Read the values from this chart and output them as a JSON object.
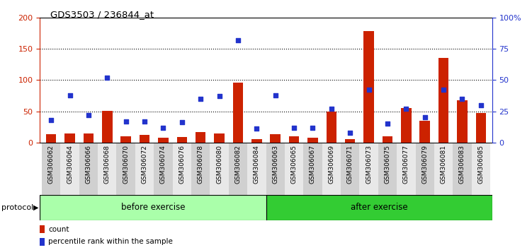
{
  "title": "GDS3503 / 236844_at",
  "samples": [
    "GSM306062",
    "GSM306064",
    "GSM306066",
    "GSM306068",
    "GSM306070",
    "GSM306072",
    "GSM306074",
    "GSM306076",
    "GSM306078",
    "GSM306080",
    "GSM306082",
    "GSM306084",
    "GSM306063",
    "GSM306065",
    "GSM306067",
    "GSM306069",
    "GSM306071",
    "GSM306073",
    "GSM306075",
    "GSM306077",
    "GSM306079",
    "GSM306081",
    "GSM306083",
    "GSM306085"
  ],
  "count": [
    13,
    15,
    15,
    51,
    10,
    12,
    8,
    9,
    17,
    15,
    96,
    5,
    13,
    10,
    8,
    50,
    5,
    178,
    10,
    55,
    35,
    135,
    67,
    47
  ],
  "percentile": [
    18,
    38,
    22,
    52,
    17,
    17,
    12,
    16,
    35,
    37,
    82,
    11,
    38,
    12,
    12,
    27,
    8,
    42,
    15,
    27,
    20,
    42,
    35,
    30
  ],
  "before_label": "before exercise",
  "after_label": "after exercise",
  "protocol_label": "protocol",
  "count_label": "count",
  "percentile_label": "percentile rank within the sample",
  "ylim_left": [
    0,
    200
  ],
  "ylim_right": [
    0,
    100
  ],
  "yticks_left": [
    0,
    50,
    100,
    150,
    200
  ],
  "yticks_right": [
    0,
    25,
    50,
    75,
    100
  ],
  "yticklabels_right": [
    "0",
    "25",
    "50",
    "75",
    "100%"
  ],
  "bar_color": "#cc2200",
  "percentile_color": "#2233cc",
  "before_bg": "#aaffaa",
  "after_bg": "#33cc33",
  "label_bg_odd": "#d0d0d0",
  "label_bg_even": "#e8e8e8",
  "bar_width": 0.55,
  "n_before": 12,
  "n_total": 24
}
